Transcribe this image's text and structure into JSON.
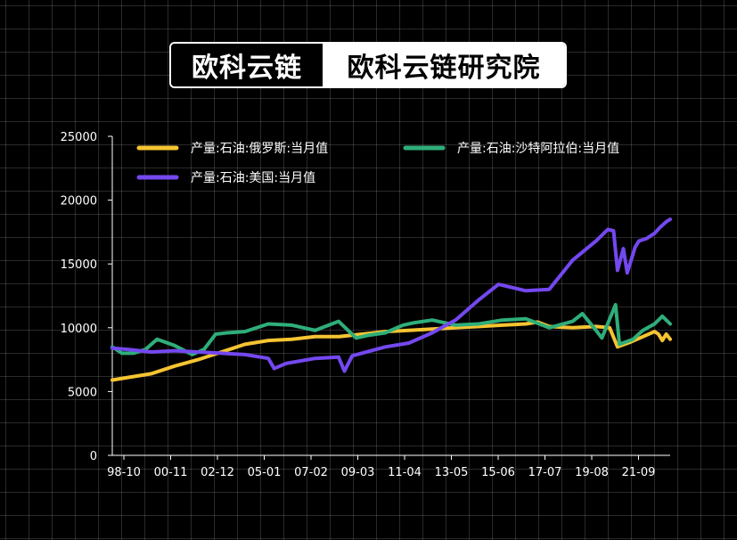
{
  "brand": {
    "left": "欧科云链",
    "right": "欧科云链研究院"
  },
  "chart_data": {
    "type": "line",
    "title": "",
    "xlabel": "",
    "ylabel": "",
    "ylim": [
      0,
      25000
    ],
    "yticks": [
      0,
      5000,
      10000,
      15000,
      20000,
      25000
    ],
    "xticks": [
      "98-10",
      "00-11",
      "02-12",
      "05-01",
      "07-02",
      "09-03",
      "11-04",
      "13-05",
      "15-06",
      "17-07",
      "19-08",
      "21-09"
    ],
    "x_range": [
      "1998-10",
      "2022-08"
    ],
    "grid": true,
    "legend_position": "top",
    "series": [
      {
        "name": "产量:石油:俄罗斯:当月值",
        "color": "#f5c431",
        "points": [
          [
            "1998-10",
            5900
          ],
          [
            "1999-06",
            6100
          ],
          [
            "2000-06",
            6400
          ],
          [
            "2001-06",
            7000
          ],
          [
            "2002-06",
            7500
          ],
          [
            "2003-06",
            8100
          ],
          [
            "2004-06",
            8700
          ],
          [
            "2005-06",
            9000
          ],
          [
            "2006-06",
            9100
          ],
          [
            "2007-06",
            9300
          ],
          [
            "2008-06",
            9300
          ],
          [
            "2009-06",
            9500
          ],
          [
            "2010-06",
            9700
          ],
          [
            "2011-06",
            9800
          ],
          [
            "2012-06",
            9900
          ],
          [
            "2013-06",
            10000
          ],
          [
            "2014-06",
            10100
          ],
          [
            "2015-06",
            10200
          ],
          [
            "2016-06",
            10300
          ],
          [
            "2016-12",
            10450
          ],
          [
            "2017-06",
            10100
          ],
          [
            "2018-06",
            10000
          ],
          [
            "2019-06",
            10100
          ],
          [
            "2020-01",
            10000
          ],
          [
            "2020-05",
            8500
          ],
          [
            "2020-12",
            8900
          ],
          [
            "2021-06",
            9300
          ],
          [
            "2021-12",
            9700
          ],
          [
            "2022-02",
            9500
          ],
          [
            "2022-04",
            9000
          ],
          [
            "2022-06",
            9500
          ],
          [
            "2022-08",
            9100
          ]
        ]
      },
      {
        "name": "产量:石油:沙特阿拉伯:当月值",
        "color": "#2fae7a",
        "points": [
          [
            "1998-10",
            8500
          ],
          [
            "1999-03",
            8000
          ],
          [
            "1999-09",
            8000
          ],
          [
            "2000-03",
            8300
          ],
          [
            "2000-09",
            9100
          ],
          [
            "2001-06",
            8600
          ],
          [
            "2002-03",
            7900
          ],
          [
            "2002-09",
            8300
          ],
          [
            "2003-03",
            9500
          ],
          [
            "2003-09",
            9600
          ],
          [
            "2004-06",
            9700
          ],
          [
            "2005-06",
            10300
          ],
          [
            "2006-06",
            10200
          ],
          [
            "2007-06",
            9800
          ],
          [
            "2008-06",
            10500
          ],
          [
            "2009-03",
            9200
          ],
          [
            "2009-09",
            9400
          ],
          [
            "2010-06",
            9600
          ],
          [
            "2011-03",
            10200
          ],
          [
            "2011-09",
            10400
          ],
          [
            "2012-06",
            10600
          ],
          [
            "2013-06",
            10200
          ],
          [
            "2014-06",
            10300
          ],
          [
            "2015-06",
            10600
          ],
          [
            "2016-06",
            10700
          ],
          [
            "2017-06",
            10000
          ],
          [
            "2018-06",
            10500
          ],
          [
            "2018-11",
            11100
          ],
          [
            "2019-06",
            9800
          ],
          [
            "2019-09",
            9200
          ],
          [
            "2020-04",
            11800
          ],
          [
            "2020-06",
            8700
          ],
          [
            "2021-01",
            9100
          ],
          [
            "2021-06",
            9800
          ],
          [
            "2021-12",
            10300
          ],
          [
            "2022-04",
            10900
          ],
          [
            "2022-06",
            10600
          ],
          [
            "2022-08",
            10300
          ]
        ]
      },
      {
        "name": "产量:石油:美国:当月值",
        "color": "#7448f0",
        "points": [
          [
            "1998-10",
            8400
          ],
          [
            "1999-06",
            8300
          ],
          [
            "2000-06",
            8100
          ],
          [
            "2001-06",
            8200
          ],
          [
            "2002-06",
            8100
          ],
          [
            "2003-06",
            8000
          ],
          [
            "2004-06",
            7900
          ],
          [
            "2005-06",
            7600
          ],
          [
            "2005-09",
            6800
          ],
          [
            "2006-03",
            7200
          ],
          [
            "2007-06",
            7600
          ],
          [
            "2008-06",
            7700
          ],
          [
            "2008-09",
            6600
          ],
          [
            "2009-01",
            7800
          ],
          [
            "2010-06",
            8500
          ],
          [
            "2011-06",
            8800
          ],
          [
            "2012-06",
            9600
          ],
          [
            "2013-06",
            10600
          ],
          [
            "2014-06",
            12200
          ],
          [
            "2015-04",
            13400
          ],
          [
            "2016-06",
            12900
          ],
          [
            "2017-06",
            13000
          ],
          [
            "2018-06",
            15300
          ],
          [
            "2019-06",
            16800
          ],
          [
            "2019-12",
            17700
          ],
          [
            "2020-03",
            17600
          ],
          [
            "2020-05",
            14500
          ],
          [
            "2020-08",
            16200
          ],
          [
            "2020-10",
            14300
          ],
          [
            "2021-02",
            16300
          ],
          [
            "2021-04",
            16800
          ],
          [
            "2021-08",
            17000
          ],
          [
            "2021-12",
            17400
          ],
          [
            "2022-03",
            17900
          ],
          [
            "2022-06",
            18300
          ],
          [
            "2022-08",
            18500
          ]
        ]
      }
    ]
  }
}
